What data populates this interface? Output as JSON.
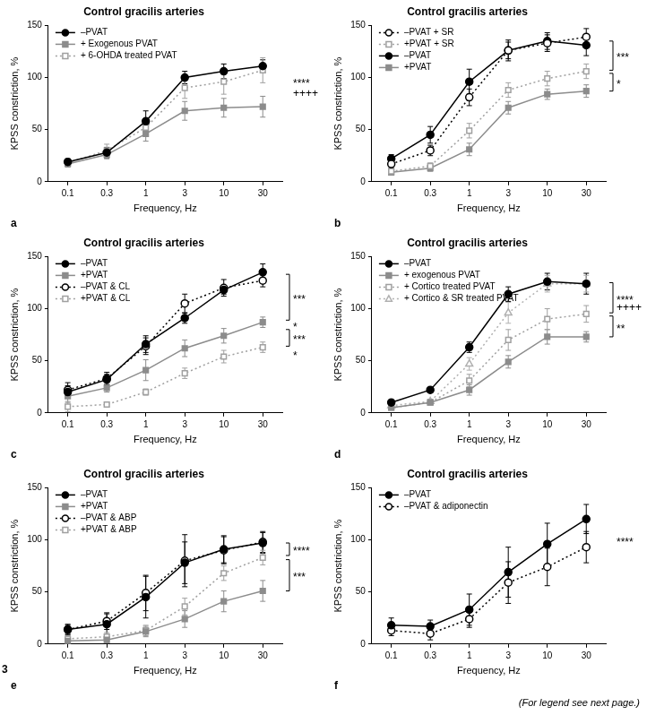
{
  "figure_number": "3",
  "footer": "(For legend see next page.)",
  "chart_data": [
    {
      "type": "line",
      "panel_label": "a",
      "title": "Control gracilis arteries",
      "x_label": "Frequency, Hz",
      "y_label": "KPSS constriction, %",
      "categories": [
        "0.1",
        "0.3",
        "1",
        "3",
        "10",
        "30"
      ],
      "ylim": [
        0,
        150
      ],
      "yticks": [
        0,
        50,
        100,
        150
      ],
      "grid": false,
      "legend": "upper left",
      "series": [
        {
          "name": "–PVAT",
          "color": "#000000",
          "marker": "filled-circle",
          "line_style": "solid",
          "values": [
            19,
            28,
            58,
            100,
            106,
            111
          ],
          "errors": [
            3,
            5,
            10,
            6,
            7,
            6
          ]
        },
        {
          "name": "+ Exogenous PVAT",
          "color": "#8c8c8c",
          "marker": "filled-square",
          "line_style": "solid",
          "values": [
            17,
            26,
            46,
            68,
            71,
            72
          ],
          "errors": [
            3,
            4,
            7,
            9,
            9,
            10
          ]
        },
        {
          "name": "+ 6-OHDA treated PVAT",
          "color": "#a0a0a0",
          "marker": "open-square",
          "line_style": "dotted",
          "values": [
            18,
            30,
            52,
            90,
            96,
            107
          ],
          "errors": [
            3,
            6,
            8,
            10,
            12,
            12
          ]
        }
      ],
      "annotations": [
        {
          "text": "****",
          "y": 96
        },
        {
          "text": "++++",
          "y": 87
        }
      ]
    },
    {
      "type": "line",
      "panel_label": "b",
      "title": "Control gracilis arteries",
      "x_label": "Frequency, Hz",
      "y_label": "KPSS constriction, %",
      "categories": [
        "0.1",
        "0.3",
        "1",
        "3",
        "10",
        "30"
      ],
      "ylim": [
        0,
        150
      ],
      "yticks": [
        0,
        50,
        100,
        150
      ],
      "grid": false,
      "legend": "upper left",
      "series": [
        {
          "name": "–PVAT + SR",
          "color": "#000000",
          "marker": "open-circle",
          "line_style": "dotted",
          "values": [
            17,
            30,
            81,
            126,
            133,
            139
          ],
          "errors": [
            4,
            5,
            8,
            8,
            8,
            8
          ]
        },
        {
          "name": "+PVAT + SR",
          "color": "#a0a0a0",
          "marker": "open-square",
          "line_style": "dotted",
          "values": [
            10,
            15,
            49,
            88,
            99,
            106
          ],
          "errors": [
            3,
            3,
            7,
            7,
            7,
            7
          ]
        },
        {
          "name": "–PVAT",
          "color": "#000000",
          "marker": "filled-circle",
          "line_style": "solid",
          "values": [
            22,
            45,
            96,
            126,
            135,
            131
          ],
          "errors": [
            4,
            8,
            12,
            10,
            8,
            10
          ]
        },
        {
          "name": "+PVAT",
          "color": "#8c8c8c",
          "marker": "filled-square",
          "line_style": "solid",
          "values": [
            9,
            13,
            31,
            71,
            84,
            87
          ],
          "errors": [
            2,
            3,
            6,
            6,
            5,
            6
          ]
        }
      ],
      "annotations": [
        {
          "text": "***",
          "y_from": 135,
          "y_to": 107
        },
        {
          "text": "*",
          "y_from": 104,
          "y_to": 87
        }
      ]
    },
    {
      "type": "line",
      "panel_label": "c",
      "title": "Control gracilis arteries",
      "x_label": "Frequency, Hz",
      "y_label": "KPSS constriction, %",
      "categories": [
        "0.1",
        "0.3",
        "1",
        "3",
        "10",
        "30"
      ],
      "ylim": [
        0,
        150
      ],
      "yticks": [
        0,
        50,
        100,
        150
      ],
      "grid": false,
      "legend": "upper left",
      "series": [
        {
          "name": "–PVAT",
          "color": "#000000",
          "marker": "filled-circle",
          "line_style": "solid",
          "values": [
            20,
            32,
            66,
            91,
            118,
            135
          ],
          "errors": [
            6,
            5,
            8,
            5,
            4,
            8
          ]
        },
        {
          "name": "+PVAT",
          "color": "#8c8c8c",
          "marker": "filled-square",
          "line_style": "solid",
          "values": [
            16,
            24,
            41,
            62,
            74,
            87
          ],
          "errors": [
            6,
            4,
            10,
            8,
            7,
            5
          ]
        },
        {
          "name": "–PVAT & CL",
          "color": "#000000",
          "marker": "open-circle",
          "line_style": "dotted",
          "values": [
            22,
            33,
            64,
            105,
            120,
            127
          ],
          "errors": [
            7,
            6,
            8,
            9,
            8,
            6
          ]
        },
        {
          "name": "+PVAT & CL",
          "color": "#a0a0a0",
          "marker": "open-square",
          "line_style": "dotted",
          "values": [
            6,
            8,
            20,
            38,
            54,
            63
          ],
          "errors": [
            5,
            2,
            3,
            5,
            6,
            5
          ]
        }
      ],
      "annotations": [
        {
          "text": "***",
          "y_from": 133,
          "y_to": 89
        },
        {
          "text": "*",
          "y": 84
        },
        {
          "text": "***",
          "y_from": 80,
          "y_to": 64
        },
        {
          "text": "*",
          "y": 57
        }
      ]
    },
    {
      "type": "line",
      "panel_label": "d",
      "title": "Control gracilis arteries",
      "x_label": "Frequency, Hz",
      "y_label": "KPSS constriction, %",
      "categories": [
        "0.1",
        "0.3",
        "1",
        "3",
        "10",
        "30"
      ],
      "ylim": [
        0,
        150
      ],
      "yticks": [
        0,
        50,
        100,
        150
      ],
      "grid": false,
      "legend": "upper left",
      "series": [
        {
          "name": "–PVAT",
          "color": "#000000",
          "marker": "filled-circle",
          "line_style": "solid",
          "values": [
            10,
            22,
            63,
            114,
            126,
            124
          ],
          "errors": [
            2,
            2,
            5,
            7,
            8,
            10
          ]
        },
        {
          "name": "+ exogenous PVAT",
          "color": "#8c8c8c",
          "marker": "filled-square",
          "line_style": "solid",
          "values": [
            5,
            10,
            22,
            49,
            73,
            73
          ],
          "errors": [
            1,
            2,
            5,
            6,
            7,
            5
          ]
        },
        {
          "name": "+ Cortico treated PVAT",
          "color": "#a0a0a0",
          "marker": "open-square",
          "line_style": "dotted",
          "values": [
            5,
            10,
            31,
            70,
            90,
            95
          ],
          "errors": [
            1,
            2,
            6,
            10,
            10,
            8
          ]
        },
        {
          "name": "+ Cortico & SR treated PVAT",
          "color": "#b0b0b0",
          "marker": "open-triangle",
          "line_style": "dotted",
          "values": [
            7,
            11,
            47,
            96,
            124,
            124
          ],
          "errors": [
            1,
            2,
            6,
            10,
            8,
            8
          ]
        }
      ],
      "annotations": [
        {
          "text": "****",
          "y_from": 125,
          "y_to": 96
        },
        {
          "text": "++++",
          "y": 103
        },
        {
          "text": "**",
          "y_from": 93,
          "y_to": 73
        }
      ]
    },
    {
      "type": "line",
      "panel_label": "e",
      "title": "Control gracilis arteries",
      "x_label": "Frequency, Hz",
      "y_label": "KPSS constriction, %",
      "categories": [
        "0.1",
        "0.3",
        "1",
        "3",
        "10",
        "30"
      ],
      "ylim": [
        0,
        150
      ],
      "yticks": [
        0,
        50,
        100,
        150
      ],
      "grid": false,
      "legend": "upper left",
      "series": [
        {
          "name": "–PVAT",
          "color": "#000000",
          "marker": "filled-circle",
          "line_style": "solid",
          "values": [
            14,
            19,
            45,
            78,
            91,
            97
          ],
          "errors": [
            4,
            10,
            20,
            20,
            13,
            10
          ]
        },
        {
          "name": "+PVAT",
          "color": "#8c8c8c",
          "marker": "filled-square",
          "line_style": "solid",
          "values": [
            3,
            4,
            12,
            24,
            41,
            51
          ],
          "errors": [
            2,
            3,
            5,
            8,
            10,
            10
          ]
        },
        {
          "name": "–PVAT & ABP",
          "color": "#000000",
          "marker": "open-circle",
          "line_style": "dotted",
          "values": [
            14,
            22,
            49,
            80,
            90,
            98
          ],
          "errors": [
            5,
            8,
            17,
            25,
            13,
            10
          ]
        },
        {
          "name": "+PVAT & ABP",
          "color": "#a0a0a0",
          "marker": "open-square",
          "line_style": "dotted",
          "values": [
            5,
            7,
            13,
            36,
            68,
            83
          ],
          "errors": [
            3,
            4,
            5,
            8,
            7,
            7
          ]
        }
      ],
      "annotations": [
        {
          "text": "****",
          "y_from": 97,
          "y_to": 85
        },
        {
          "text": "***",
          "y_from": 81,
          "y_to": 51
        }
      ]
    },
    {
      "type": "line",
      "panel_label": "f",
      "title": "Control gracilis arteries",
      "x_label": "Frequency, Hz",
      "y_label": "KPSS constriction, %",
      "categories": [
        "0.1",
        "0.3",
        "1",
        "3",
        "10",
        "30"
      ],
      "ylim": [
        0,
        150
      ],
      "yticks": [
        0,
        50,
        100,
        150
      ],
      "grid": false,
      "legend": "upper left",
      "series": [
        {
          "name": "–PVAT",
          "color": "#000000",
          "marker": "filled-circle",
          "line_style": "solid",
          "values": [
            18,
            17,
            33,
            69,
            96,
            120
          ],
          "errors": [
            7,
            6,
            15,
            24,
            20,
            14
          ]
        },
        {
          "name": "–PVAT & adiponectin",
          "color": "#000000",
          "marker": "open-circle",
          "line_style": "dotted",
          "values": [
            13,
            10,
            24,
            59,
            74,
            93
          ],
          "errors": [
            5,
            6,
            8,
            20,
            18,
            15
          ]
        }
      ],
      "annotations": [
        {
          "text": "****",
          "y": 100
        }
      ]
    }
  ]
}
